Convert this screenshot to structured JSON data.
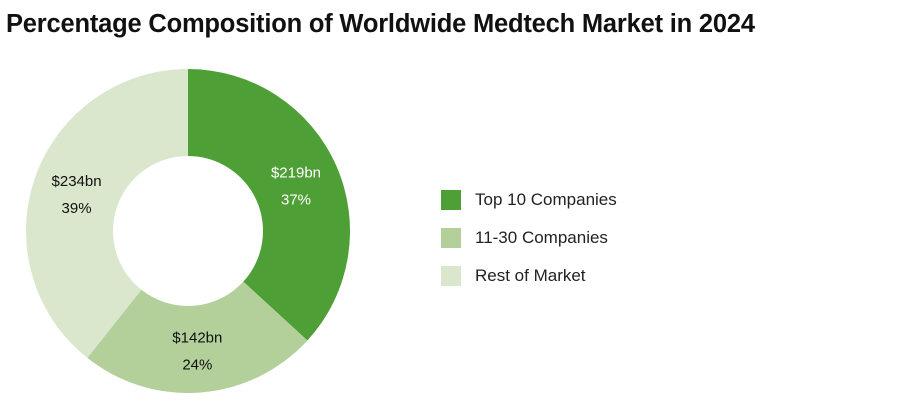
{
  "chart_data": {
    "type": "pie",
    "title": "Percentage Composition of Worldwide Medtech Market in 2024",
    "donut": true,
    "legend_position": "right",
    "categories": [
      "Top 10 Companies",
      "11-30 Companies",
      "Rest of Market"
    ],
    "values": [
      219,
      142,
      234
    ],
    "value_labels": [
      "$219bn",
      "$142bn",
      "$234bn"
    ],
    "percent_labels": [
      "37%",
      "24%",
      "39%"
    ],
    "colors": [
      "#4f9f37",
      "#b3cf9a",
      "#dbe7cd"
    ],
    "label_colors": [
      "#ffffff",
      "#111111",
      "#111111"
    ]
  }
}
